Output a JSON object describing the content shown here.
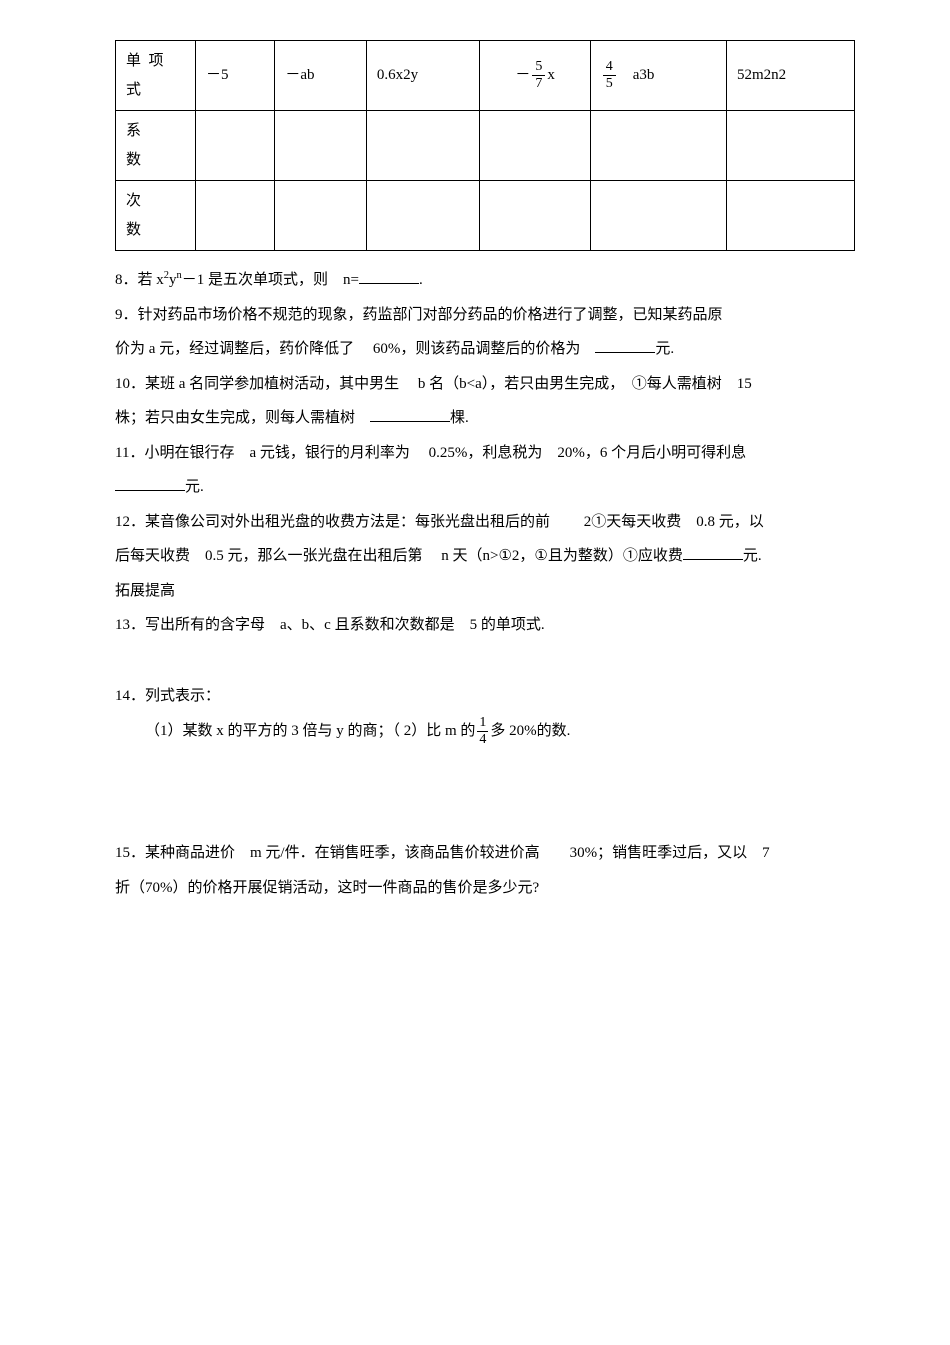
{
  "table": {
    "row_labels": [
      "单项式",
      "系　数",
      "次　数"
    ],
    "cols": [
      {
        "type": "plain",
        "text": "－5"
      },
      {
        "type": "plain",
        "text": "－ab"
      },
      {
        "type": "plain",
        "text": "0.6x2y"
      },
      {
        "type": "frac",
        "sign": "－",
        "num": "5",
        "den": "7",
        "after": "x"
      },
      {
        "type": "frac",
        "sign": "",
        "num": "4",
        "den": "5",
        "after": "　a3b"
      },
      {
        "type": "plain",
        "text": "52m2n2"
      }
    ]
  },
  "q8": {
    "pre": "8．若 x",
    "sup": "2",
    "mid": "y",
    "sup2": "n",
    "post": "－1 是五次单项式，则　n=",
    "tail": "."
  },
  "q9a": "9．针对药品市场价格不规范的现象，药监部门对部分药品的价格进行了调整，已知某药品原",
  "q9b_pre": "价为 a 元，经过调整后，药价降低了　 60%，则该药品调整后的价格为　",
  "q9b_post": "元.",
  "q10a": "10．某班 a 名同学参加植树活动，其中男生　 b 名（b<a），若只由男生完成，　①每人需植树　15",
  "q10b_pre": "株；若只由女生完成，则每人需植树　",
  "q10b_post": "棵.",
  "q11a": "11．小明在银行存　a 元钱，银行的月利率为　 0.25%，利息税为　20%，6 个月后小明可得利息",
  "q11b_post": "元.",
  "q12a": "12．某音像公司对外出租光盘的收费方法是：每张光盘出租后的前　　 2①天每天收费　0.8 元，以",
  "q12b_pre": "后每天收费　0.5 元，那么一张光盘在出租后第　 n 天（n>①2，①且为整数）①应收费",
  "q12b_post": "元.",
  "q12c": "拓展提高",
  "q13": "13．写出所有的含字母　a、b、c 且系数和次数都是　5 的单项式.",
  "q14": "14．列式表示：",
  "q14_1_pre": "（1）某数 x 的平方的 3 倍与 y 的商；（ 2）比 m 的",
  "q14_frac_num": "1",
  "q14_frac_den": "4",
  "q14_1_post": "多 20%的数.",
  "q15a": "15．某种商品进价　m 元/件．在销售旺季，该商品售价较进价高　　30%；销售旺季过后，又以　7",
  "q15b": "折（70%）的价格开展促销活动，这时一件商品的售价是多少元?"
}
